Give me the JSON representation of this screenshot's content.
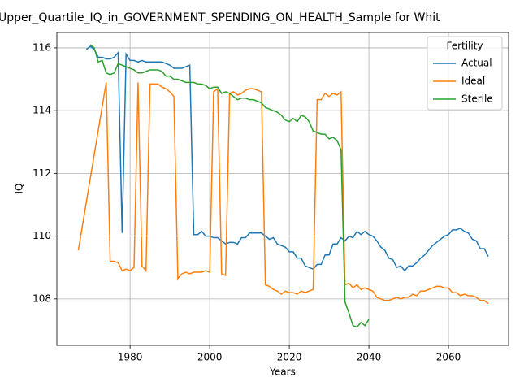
{
  "chart_data": {
    "type": "line",
    "title": "Upper_Quartile_IQ_in_GOVERNMENT_SPENDING_ON_HEALTH_Sample for Whit",
    "x_label": "Years",
    "y_label": "IQ",
    "xlim": [
      1961.6,
      2075.1
    ],
    "ylim": [
      106.52,
      116.49
    ],
    "xticks": [
      1980,
      2000,
      2020,
      2040,
      2060
    ],
    "yticks": [
      108,
      110,
      112,
      114,
      116
    ],
    "grid": true,
    "legend_title": "Fertility",
    "legend_loc": "upper right",
    "series": [
      {
        "name": "Actual",
        "color": "#1f77b4",
        "x": [
          1969,
          1970,
          1971,
          1972,
          1973,
          1974,
          1975,
          1976,
          1977,
          1978,
          1979,
          1980,
          1981,
          1982,
          1983,
          1984,
          1985,
          1986,
          1987,
          1988,
          1989,
          1990,
          1991,
          1992,
          1993,
          1994,
          1995,
          1996,
          1997,
          1998,
          1999,
          2000,
          2001,
          2002,
          2003,
          2004,
          2005,
          2006,
          2007,
          2008,
          2009,
          2010,
          2011,
          2012,
          2013,
          2014,
          2015,
          2016,
          2017,
          2018,
          2019,
          2020,
          2021,
          2022,
          2023,
          2024,
          2025,
          2026,
          2027,
          2028,
          2029,
          2030,
          2031,
          2032,
          2033,
          2034,
          2035,
          2036,
          2037,
          2038,
          2039,
          2040,
          2041,
          2042,
          2043,
          2044,
          2045,
          2046,
          2047,
          2048,
          2049,
          2050,
          2051,
          2052,
          2053,
          2054,
          2055,
          2056,
          2057,
          2058,
          2059,
          2060,
          2061,
          2062,
          2063,
          2064,
          2065,
          2066,
          2067,
          2068,
          2069,
          2070
        ],
        "values": [
          115.95,
          116.05,
          115.95,
          115.7,
          115.7,
          115.65,
          115.65,
          115.7,
          115.85,
          110.1,
          115.8,
          115.6,
          115.6,
          115.55,
          115.6,
          115.55,
          115.55,
          115.55,
          115.55,
          115.55,
          115.5,
          115.45,
          115.35,
          115.35,
          115.35,
          115.4,
          115.45,
          110.05,
          110.05,
          110.15,
          110.0,
          110.0,
          109.95,
          109.95,
          109.85,
          109.75,
          109.8,
          109.8,
          109.75,
          109.95,
          109.95,
          110.1,
          110.1,
          110.1,
          110.1,
          110.0,
          109.9,
          109.95,
          109.75,
          109.7,
          109.65,
          109.5,
          109.5,
          109.3,
          109.3,
          109.05,
          109.0,
          108.95,
          109.1,
          109.1,
          109.4,
          109.4,
          109.75,
          109.75,
          109.95,
          109.85,
          110.0,
          109.95,
          110.15,
          110.05,
          110.15,
          110.05,
          110.0,
          109.85,
          109.65,
          109.55,
          109.3,
          109.25,
          109.0,
          109.05,
          108.9,
          109.05,
          109.05,
          109.15,
          109.3,
          109.4,
          109.55,
          109.7,
          109.8,
          109.9,
          110.0,
          110.05,
          110.2,
          110.2,
          110.25,
          110.15,
          110.1,
          109.9,
          109.85,
          109.6,
          109.6,
          109.35
        ]
      },
      {
        "name": "Ideal",
        "color": "#ff7f0e",
        "x": [
          1967,
          1974,
          1975,
          1976,
          1977,
          1978,
          1979,
          1980,
          1981,
          1982,
          1983,
          1984,
          1985,
          1986,
          1987,
          1988,
          1989,
          1990,
          1991,
          1992,
          1993,
          1994,
          1995,
          1996,
          1997,
          1998,
          1999,
          2000,
          2001,
          2002,
          2003,
          2004,
          2005,
          2006,
          2007,
          2008,
          2009,
          2010,
          2011,
          2012,
          2013,
          2014,
          2015,
          2016,
          2017,
          2018,
          2019,
          2020,
          2021,
          2022,
          2023,
          2024,
          2025,
          2026,
          2027,
          2028,
          2029,
          2030,
          2031,
          2032,
          2033,
          2034,
          2035,
          2036,
          2037,
          2038,
          2039,
          2040,
          2041,
          2042,
          2043,
          2044,
          2045,
          2046,
          2047,
          2048,
          2049,
          2050,
          2051,
          2052,
          2053,
          2054,
          2055,
          2056,
          2057,
          2058,
          2059,
          2060,
          2061,
          2062,
          2063,
          2064,
          2065,
          2066,
          2067,
          2068,
          2069,
          2070
        ],
        "values": [
          109.55,
          114.9,
          109.2,
          109.2,
          109.15,
          108.9,
          108.95,
          108.9,
          109.0,
          114.9,
          109.05,
          108.9,
          114.85,
          114.85,
          114.85,
          114.75,
          114.7,
          114.6,
          114.45,
          108.65,
          108.8,
          108.85,
          108.8,
          108.85,
          108.85,
          108.85,
          108.9,
          108.85,
          114.6,
          114.7,
          108.8,
          108.75,
          114.55,
          114.6,
          114.5,
          114.55,
          114.65,
          114.7,
          114.7,
          114.65,
          114.6,
          108.45,
          108.4,
          108.3,
          108.25,
          108.15,
          108.25,
          108.2,
          108.2,
          108.15,
          108.25,
          108.2,
          108.25,
          108.3,
          114.35,
          114.35,
          114.55,
          114.45,
          114.55,
          114.5,
          114.6,
          108.45,
          108.5,
          108.35,
          108.45,
          108.3,
          108.35,
          108.3,
          108.25,
          108.05,
          108.0,
          107.95,
          107.95,
          108.0,
          108.05,
          108.0,
          108.05,
          108.05,
          108.15,
          108.1,
          108.25,
          108.25,
          108.3,
          108.35,
          108.4,
          108.4,
          108.35,
          108.35,
          108.2,
          108.2,
          108.1,
          108.15,
          108.1,
          108.1,
          108.05,
          107.95,
          107.95,
          107.85
        ]
      },
      {
        "name": "Sterile",
        "color": "#2ca02c",
        "x": [
          1970,
          1971,
          1972,
          1973,
          1974,
          1975,
          1976,
          1977,
          1978,
          1979,
          1980,
          1981,
          1982,
          1983,
          1984,
          1985,
          1986,
          1987,
          1988,
          1989,
          1990,
          1991,
          1992,
          1993,
          1994,
          1995,
          1996,
          1997,
          1998,
          1999,
          2000,
          2001,
          2002,
          2003,
          2004,
          2005,
          2006,
          2007,
          2008,
          2009,
          2010,
          2011,
          2012,
          2013,
          2014,
          2015,
          2016,
          2017,
          2018,
          2019,
          2020,
          2021,
          2022,
          2023,
          2024,
          2025,
          2026,
          2027,
          2028,
          2029,
          2030,
          2031,
          2032,
          2033,
          2034,
          2035,
          2036,
          2037,
          2038,
          2039,
          2040
        ],
        "values": [
          116.1,
          116.0,
          115.55,
          115.6,
          115.2,
          115.15,
          115.2,
          115.5,
          115.45,
          115.4,
          115.35,
          115.3,
          115.2,
          115.2,
          115.25,
          115.3,
          115.3,
          115.3,
          115.25,
          115.1,
          115.1,
          115.0,
          115.0,
          114.95,
          114.9,
          114.9,
          114.9,
          114.85,
          114.85,
          114.8,
          114.7,
          114.75,
          114.75,
          114.55,
          114.6,
          114.55,
          114.45,
          114.35,
          114.4,
          114.4,
          114.35,
          114.35,
          114.3,
          114.25,
          114.1,
          114.05,
          114.0,
          113.95,
          113.85,
          113.7,
          113.65,
          113.75,
          113.65,
          113.85,
          113.8,
          113.65,
          113.35,
          113.3,
          113.25,
          113.25,
          113.1,
          113.15,
          113.05,
          112.75,
          107.9,
          107.55,
          107.15,
          107.1,
          107.25,
          107.15,
          107.35
        ]
      }
    ]
  }
}
